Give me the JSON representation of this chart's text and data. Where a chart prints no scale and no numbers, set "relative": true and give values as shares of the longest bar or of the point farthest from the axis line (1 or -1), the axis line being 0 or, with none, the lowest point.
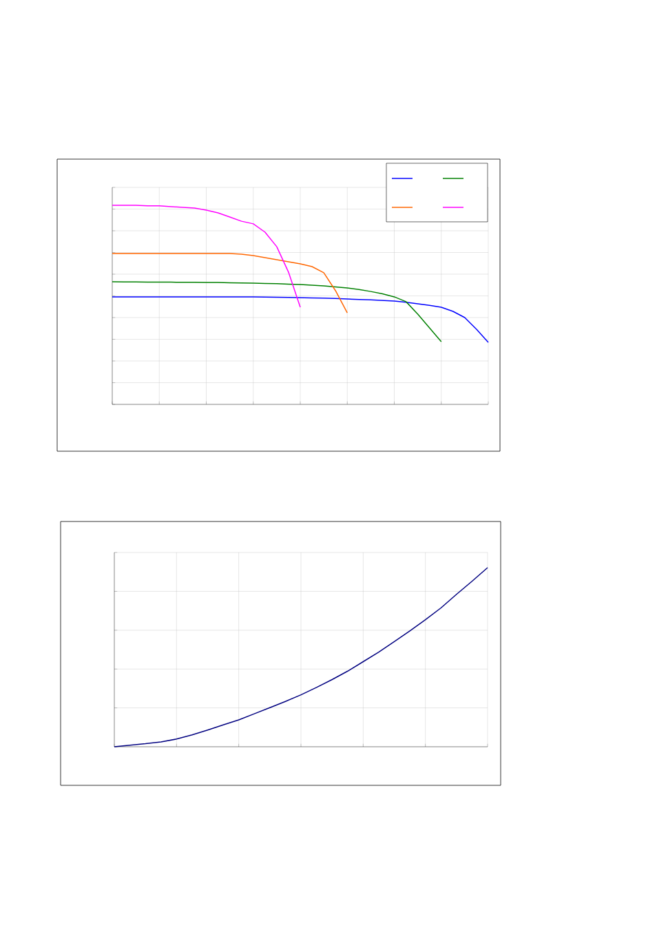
{
  "chart_data": [
    {
      "type": "line",
      "relative": true,
      "grid": true,
      "categories": [
        null,
        null,
        null,
        null,
        null,
        null,
        null,
        null,
        null,
        null,
        null,
        null,
        null,
        null,
        null,
        null,
        null,
        null,
        null,
        null,
        null,
        null,
        null,
        null,
        null,
        null,
        null,
        null,
        null,
        null,
        null,
        null,
        null
      ],
      "series": [
        {
          "color": "#0000ff",
          "values": [
            0.54,
            0.54,
            0.54,
            0.54,
            0.54,
            0.54,
            0.54,
            0.54,
            0.54,
            0.54,
            0.54,
            0.54,
            0.54,
            0.539,
            0.538,
            0.537,
            0.536,
            0.535,
            0.534,
            0.532,
            0.529,
            0.527,
            0.525,
            0.522,
            0.519,
            0.513,
            0.505,
            0.497,
            0.488,
            0.467,
            0.436,
            0.377,
            0.311
          ]
        },
        {
          "color": "#008000",
          "values": [
            0.616,
            0.615,
            0.615,
            0.614,
            0.614,
            0.614,
            0.613,
            0.613,
            0.612,
            0.612,
            0.611,
            0.61,
            0.609,
            0.607,
            0.606,
            0.604,
            0.602,
            0.599,
            0.595,
            0.59,
            0.585,
            0.577,
            0.567,
            0.555,
            0.54,
            0.516,
            0.453,
            0.384,
            0.315,
            null,
            null,
            null,
            null
          ]
        },
        {
          "color": "#ff6600",
          "values": [
            0.758,
            0.758,
            0.758,
            0.758,
            0.758,
            0.758,
            0.758,
            0.758,
            0.758,
            0.758,
            0.758,
            0.754,
            0.747,
            0.737,
            0.727,
            0.716,
            0.706,
            0.692,
            0.661,
            0.571,
            0.46,
            null,
            null,
            null,
            null,
            null,
            null,
            null,
            null,
            null,
            null,
            null,
            null
          ]
        },
        {
          "color": "#ff00ff",
          "values": [
            1,
            1,
            1,
            0.997,
            0.997,
            0.993,
            0.99,
            0.986,
            0.976,
            0.962,
            0.941,
            0.92,
            0.907,
            0.865,
            0.792,
            0.664,
            0.488,
            null,
            null,
            null,
            null,
            null,
            null,
            null,
            null,
            null,
            null,
            null,
            null,
            null,
            null,
            null,
            null
          ]
        }
      ]
    },
    {
      "type": "line",
      "relative": true,
      "grid": true,
      "categories": [
        null,
        null,
        null,
        null,
        null,
        null,
        null,
        null,
        null,
        null,
        null,
        null,
        null,
        null,
        null,
        null,
        null,
        null,
        null,
        null,
        null,
        null,
        null,
        null,
        null
      ],
      "series": [
        {
          "color": "#000080",
          "values": [
            0,
            0.009,
            0.017,
            0.027,
            0.043,
            0.066,
            0.093,
            0.122,
            0.15,
            0.184,
            0.218,
            0.253,
            0.29,
            0.331,
            0.375,
            0.422,
            0.475,
            0.528,
            0.587,
            0.647,
            0.709,
            0.775,
            0.851,
            0.924,
            1
          ]
        }
      ]
    }
  ]
}
